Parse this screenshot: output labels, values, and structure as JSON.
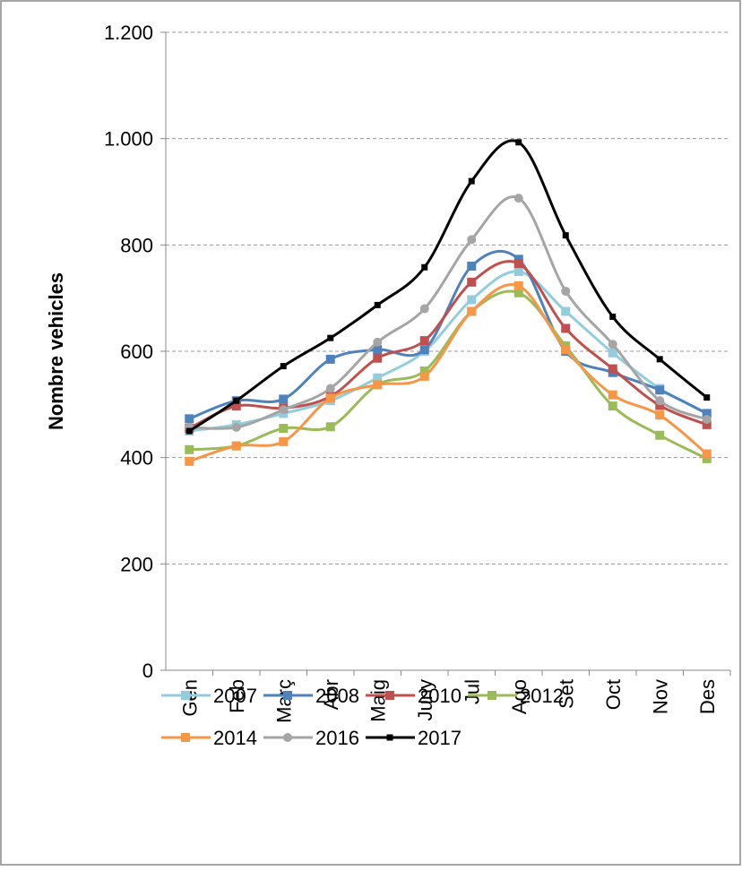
{
  "chart_data": {
    "type": "line",
    "y_label": "Nombre vehicles",
    "categories": [
      "Gen",
      "Feb",
      "Març",
      "Abr",
      "Maig",
      "Juny",
      "Jul",
      "Ago",
      "Set",
      "Oct",
      "Nov",
      "Des"
    ],
    "series": [
      {
        "name": "2007",
        "color": "#93cddd",
        "marker": "square",
        "values": [
          450,
          462,
          483,
          507,
          550,
          600,
          697,
          750,
          675,
          597,
          530,
          483
        ]
      },
      {
        "name": "2008",
        "color": "#4f81bd",
        "marker": "square",
        "values": [
          473,
          507,
          510,
          585,
          603,
          603,
          760,
          773,
          600,
          560,
          527,
          483
        ]
      },
      {
        "name": "2010",
        "color": "#c0504d",
        "marker": "square",
        "values": [
          455,
          497,
          493,
          515,
          587,
          620,
          730,
          765,
          643,
          567,
          498,
          462
        ]
      },
      {
        "name": "2012",
        "color": "#9bbb59",
        "marker": "square",
        "values": [
          415,
          422,
          455,
          458,
          537,
          563,
          675,
          710,
          610,
          497,
          442,
          398
        ]
      },
      {
        "name": "2014",
        "color": "#f79646",
        "marker": "square",
        "values": [
          393,
          422,
          430,
          512,
          537,
          553,
          675,
          723,
          603,
          518,
          480,
          407
        ]
      },
      {
        "name": "2016",
        "color": "#a5a5a5",
        "marker": "circle",
        "values": [
          457,
          457,
          490,
          530,
          617,
          680,
          810,
          888,
          713,
          613,
          507,
          472
        ]
      },
      {
        "name": "2017",
        "color": "#000000",
        "marker": "small-square",
        "values": [
          450,
          507,
          572,
          625,
          687,
          758,
          920,
          993,
          818,
          665,
          585,
          513
        ]
      }
    ],
    "ylim": [
      0,
      1200
    ],
    "yticks": [
      0,
      200,
      400,
      600,
      800,
      {
        "value": 1000,
        "label": "1.000"
      },
      {
        "value": 1200,
        "label": "1.200"
      }
    ],
    "grid": true,
    "smooth": true,
    "legend": "bottom"
  }
}
